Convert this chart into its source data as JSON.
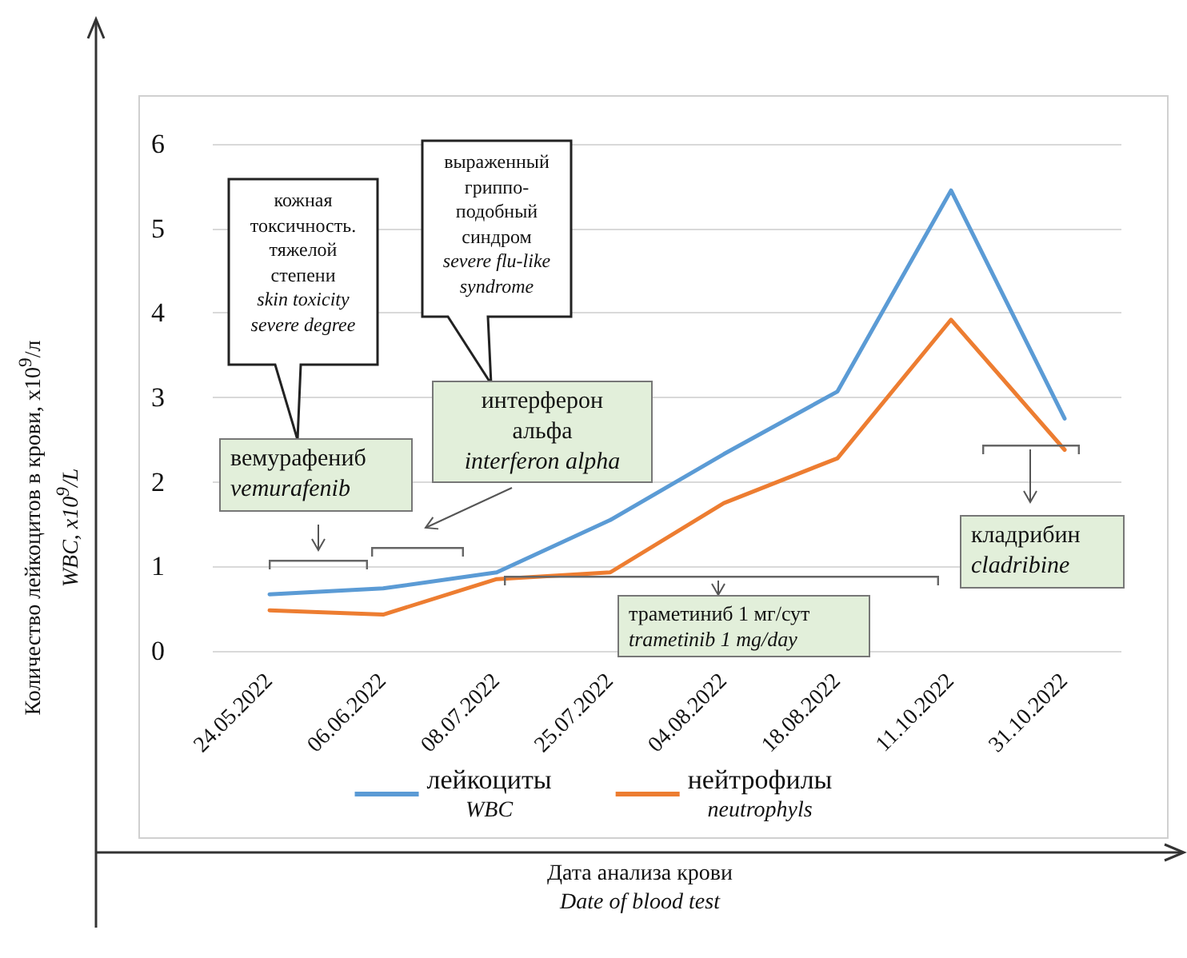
{
  "chart_data": {
    "type": "line",
    "categories": [
      "24.05.2022",
      "06.06.2022",
      "08.07.2022",
      "25.07.2022",
      "04.08.2022",
      "18.08.2022",
      "11.10.2022",
      "31.10.2022"
    ],
    "series": [
      {
        "name": "лейкоциты\nWBC",
        "color": "#5b9bd5",
        "values": [
          0.67,
          0.74,
          0.93,
          1.55,
          2.33,
          3.07,
          5.45,
          2.75
        ]
      },
      {
        "name": "нейтрофилы\nneutrophyls",
        "color": "#ed7d31",
        "values": [
          0.48,
          0.43,
          0.85,
          0.93,
          1.75,
          2.28,
          3.92,
          2.38
        ]
      }
    ],
    "xlabel": "Дата анализа крови\nDate of blood test",
    "ylabel": "Количество лейкоцитов в крови, x10$^{9}$/л\nWBC, x10$^{9}$/L",
    "ylim": [
      0,
      6
    ],
    "yticks": [
      0,
      1,
      2,
      3,
      4,
      5,
      6
    ],
    "grid": "y",
    "legend": "bottom",
    "marker": "none",
    "line_style": "solid",
    "annotations": [
      "кожная\nтоксичность.\nтяжелой\nстепени",
      "skin toxicity\nsevere degree",
      "выраженный\nгриппо-\nподобный\nсиндром",
      "severe flu-like\nsyndrome",
      "вемурафениб",
      "vemurafenib",
      "интерферон\nальфа",
      "interferon alpha",
      "траметиниб 1 мг/сут",
      "trametinib 1 mg/day",
      "кладрибин",
      "cladribine"
    ]
  }
}
